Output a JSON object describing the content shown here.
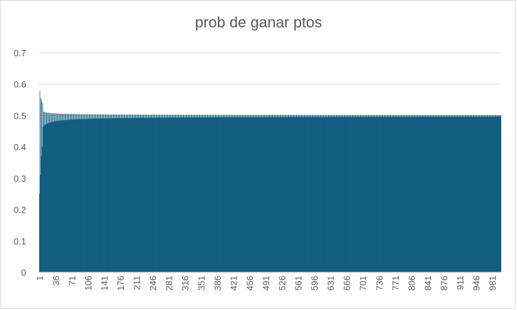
{
  "chart_data": {
    "type": "bar",
    "title": "prob de ganar ptos",
    "xlabel": "",
    "ylabel": "",
    "ylim": [
      0,
      0.7
    ],
    "y_ticks": [
      0,
      0.1,
      0.2,
      0.3,
      0.4,
      0.5,
      0.6,
      0.7
    ],
    "y_tick_labels": [
      "0",
      "0.1",
      "0.2",
      "0.3",
      "0.4",
      "0.5",
      "0.6",
      "0.7"
    ],
    "x_range": [
      1,
      1000
    ],
    "x_tick_labels": [
      "1",
      "36",
      "71",
      "106",
      "141",
      "176",
      "211",
      "246",
      "281",
      "316",
      "351",
      "386",
      "421",
      "456",
      "491",
      "526",
      "561",
      "596",
      "631",
      "666",
      "701",
      "736",
      "771",
      "806",
      "841",
      "876",
      "911",
      "946",
      "981"
    ],
    "grid": true,
    "legend": "none",
    "bar_color": "#156082",
    "series_description_pattern": "alternating oscillation converging to 0.5",
    "series": [
      {
        "values_sample": [
          {
            "x": 1,
            "y": 0.25
          },
          {
            "x": 2,
            "y": 0.578
          },
          {
            "x": 3,
            "y": 0.31
          },
          {
            "x": 4,
            "y": 0.556
          },
          {
            "x": 6,
            "y": 0.548
          },
          {
            "x": 8,
            "y": 0.54
          },
          {
            "x": 10,
            "y": 0.37
          },
          {
            "x": 20,
            "y": 0.4
          },
          {
            "x": 36,
            "y": 0.52
          },
          {
            "x": 71,
            "y": 0.515
          },
          {
            "x": 106,
            "y": 0.512
          },
          {
            "x": 141,
            "y": 0.511
          },
          {
            "x": 211,
            "y": 0.51
          },
          {
            "x": 421,
            "y": 0.508
          },
          {
            "x": 701,
            "y": 0.506
          },
          {
            "x": 1000,
            "y": 0.505
          }
        ]
      }
    ]
  }
}
